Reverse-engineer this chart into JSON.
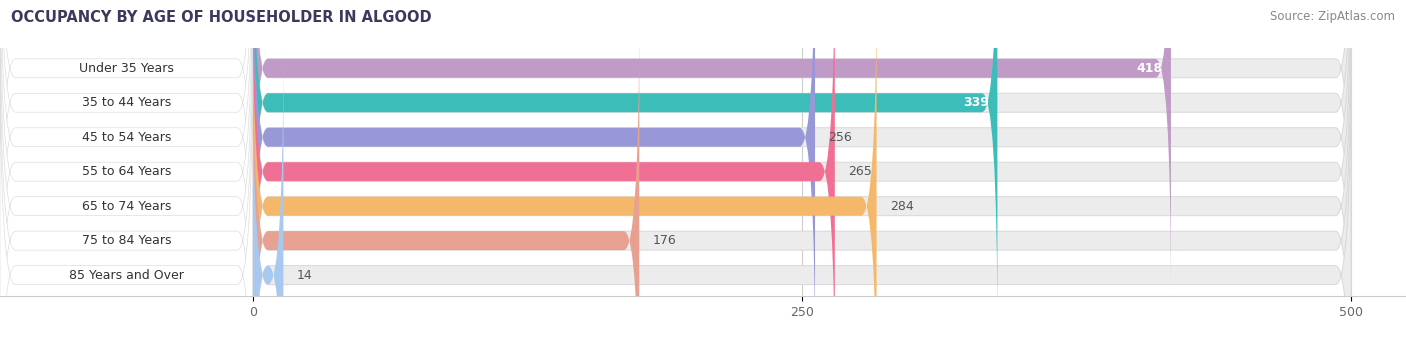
{
  "title": "OCCUPANCY BY AGE OF HOUSEHOLDER IN ALGOOD",
  "source": "Source: ZipAtlas.com",
  "categories": [
    "Under 35 Years",
    "35 to 44 Years",
    "45 to 54 Years",
    "55 to 64 Years",
    "65 to 74 Years",
    "75 to 84 Years",
    "85 Years and Over"
  ],
  "values": [
    418,
    339,
    256,
    265,
    284,
    176,
    14
  ],
  "bar_colors": [
    "#c09bc8",
    "#3dbdba",
    "#9898d8",
    "#f07095",
    "#f5b86a",
    "#e8a090",
    "#a8c8f0"
  ],
  "value_label_inside": [
    true,
    true,
    false,
    false,
    false,
    false,
    false
  ],
  "title_fontsize": 10.5,
  "source_fontsize": 8.5,
  "cat_fontsize": 9,
  "val_fontsize": 9,
  "tick_fontsize": 9,
  "fig_bg_color": "#ffffff",
  "bar_height": 0.55,
  "track_color": "#ececec",
  "track_edge_color": "#d8d8d8",
  "label_bg_color": "#ffffff",
  "xmin": 0,
  "xmax": 500,
  "xlim_left": -115,
  "xlim_right": 525,
  "xticks": [
    0,
    250,
    500
  ],
  "title_color": "#3a3a5c",
  "source_color": "#888888"
}
